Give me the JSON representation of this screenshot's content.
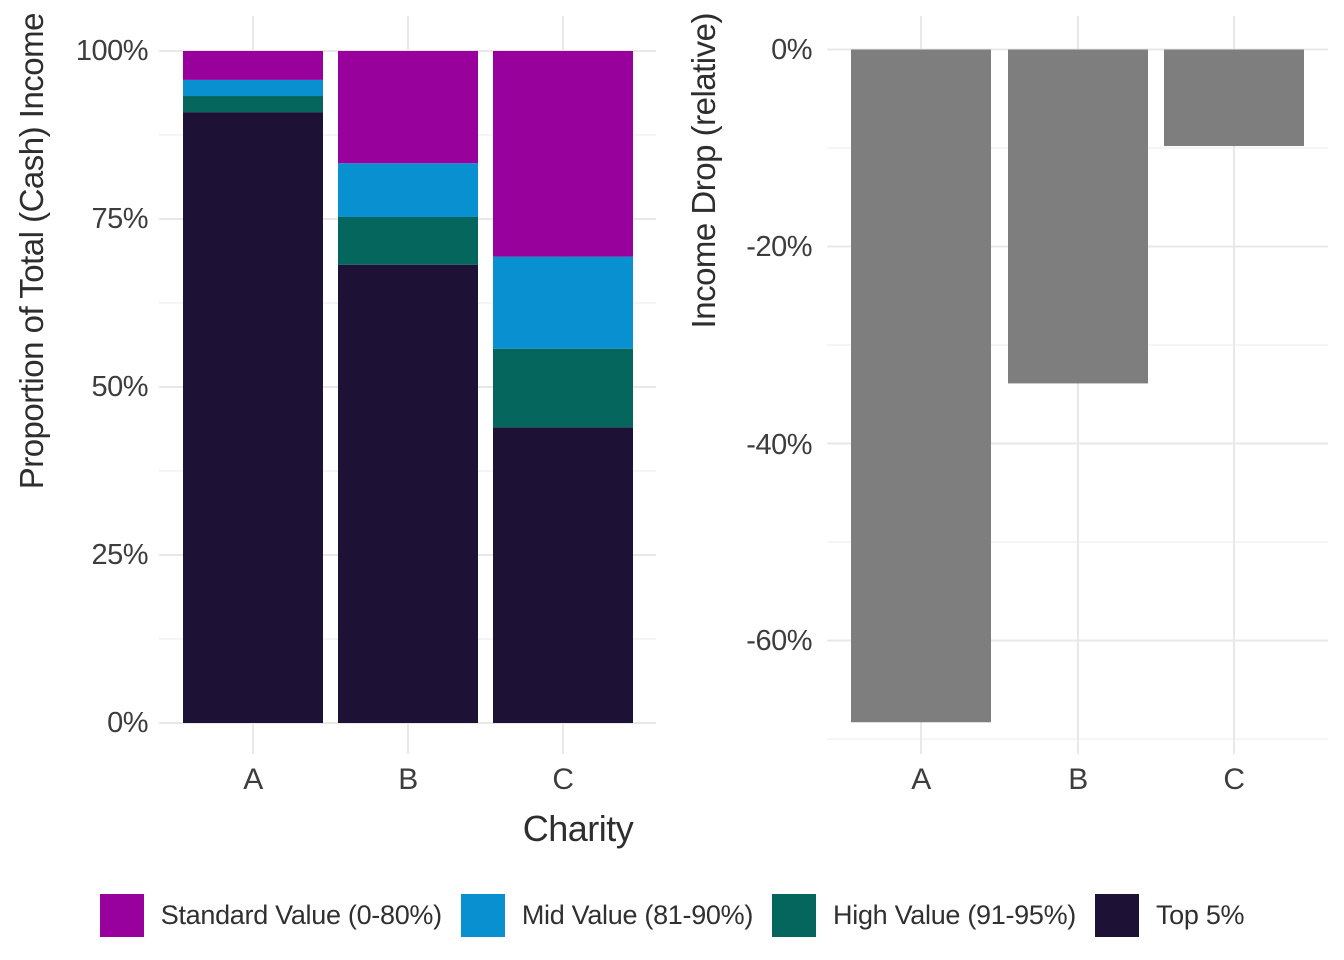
{
  "figure": {
    "background": "#FFFFFF",
    "tick_text_color": "#3D3D3D",
    "title_text_color": "#2E2E2E",
    "grid_major_color": "#E8E8E8",
    "grid_minor_color": "#F2F2F2"
  },
  "chart_data": [
    {
      "type": "bar",
      "subtype": "stacked_percent",
      "title": "",
      "ylabel": "Proportion of Total (Cash) Income",
      "xlabel": "Charity",
      "categories": [
        "A",
        "B",
        "C"
      ],
      "series": [
        {
          "name": "Standard Value (0-80%)",
          "color": "#98019B",
          "values": [
            4.3,
            16.7,
            30.6
          ]
        },
        {
          "name": "Mid Value (81-90%)",
          "color": "#0990D1",
          "values": [
            2.4,
            8.0,
            13.7
          ]
        },
        {
          "name": "High Value (91-95%)",
          "color": "#05665E",
          "values": [
            2.4,
            7.1,
            11.7
          ]
        },
        {
          "name": "Top 5%",
          "color": "#1D1135",
          "values": [
            90.9,
            68.2,
            44.0
          ]
        }
      ],
      "stack_order_bottom_to_top": [
        "Top 5%",
        "High Value (91-95%)",
        "Mid Value (81-90%)",
        "Standard Value (0-80%)"
      ],
      "ylim": [
        0,
        100
      ],
      "yticks": [
        "100%",
        "75%",
        "50%",
        "25%",
        "0%"
      ],
      "ytick_values": [
        100,
        75,
        50,
        25,
        0
      ],
      "grid": true,
      "legend_position": "bottom"
    },
    {
      "type": "bar",
      "subtype": "single_series",
      "title": "",
      "ylabel": "Income Drop (relative)",
      "xlabel": "",
      "categories": [
        "A",
        "B",
        "C"
      ],
      "values": [
        -68.3,
        -33.9,
        -9.8
      ],
      "color": "#7E7E7E",
      "ylim": [
        -70,
        0
      ],
      "yticks": [
        "0%",
        "-20%",
        "-40%",
        "-60%"
      ],
      "ytick_values": [
        0,
        -20,
        -40,
        -60
      ],
      "grid": true
    }
  ],
  "legend": {
    "items": [
      {
        "label": "Standard Value (0-80%)",
        "color": "#98019B"
      },
      {
        "label": "Mid Value (81-90%)",
        "color": "#0990D1"
      },
      {
        "label": "High Value (91-95%)",
        "color": "#05665E"
      },
      {
        "label": "Top 5%",
        "color": "#1D1135"
      }
    ]
  }
}
